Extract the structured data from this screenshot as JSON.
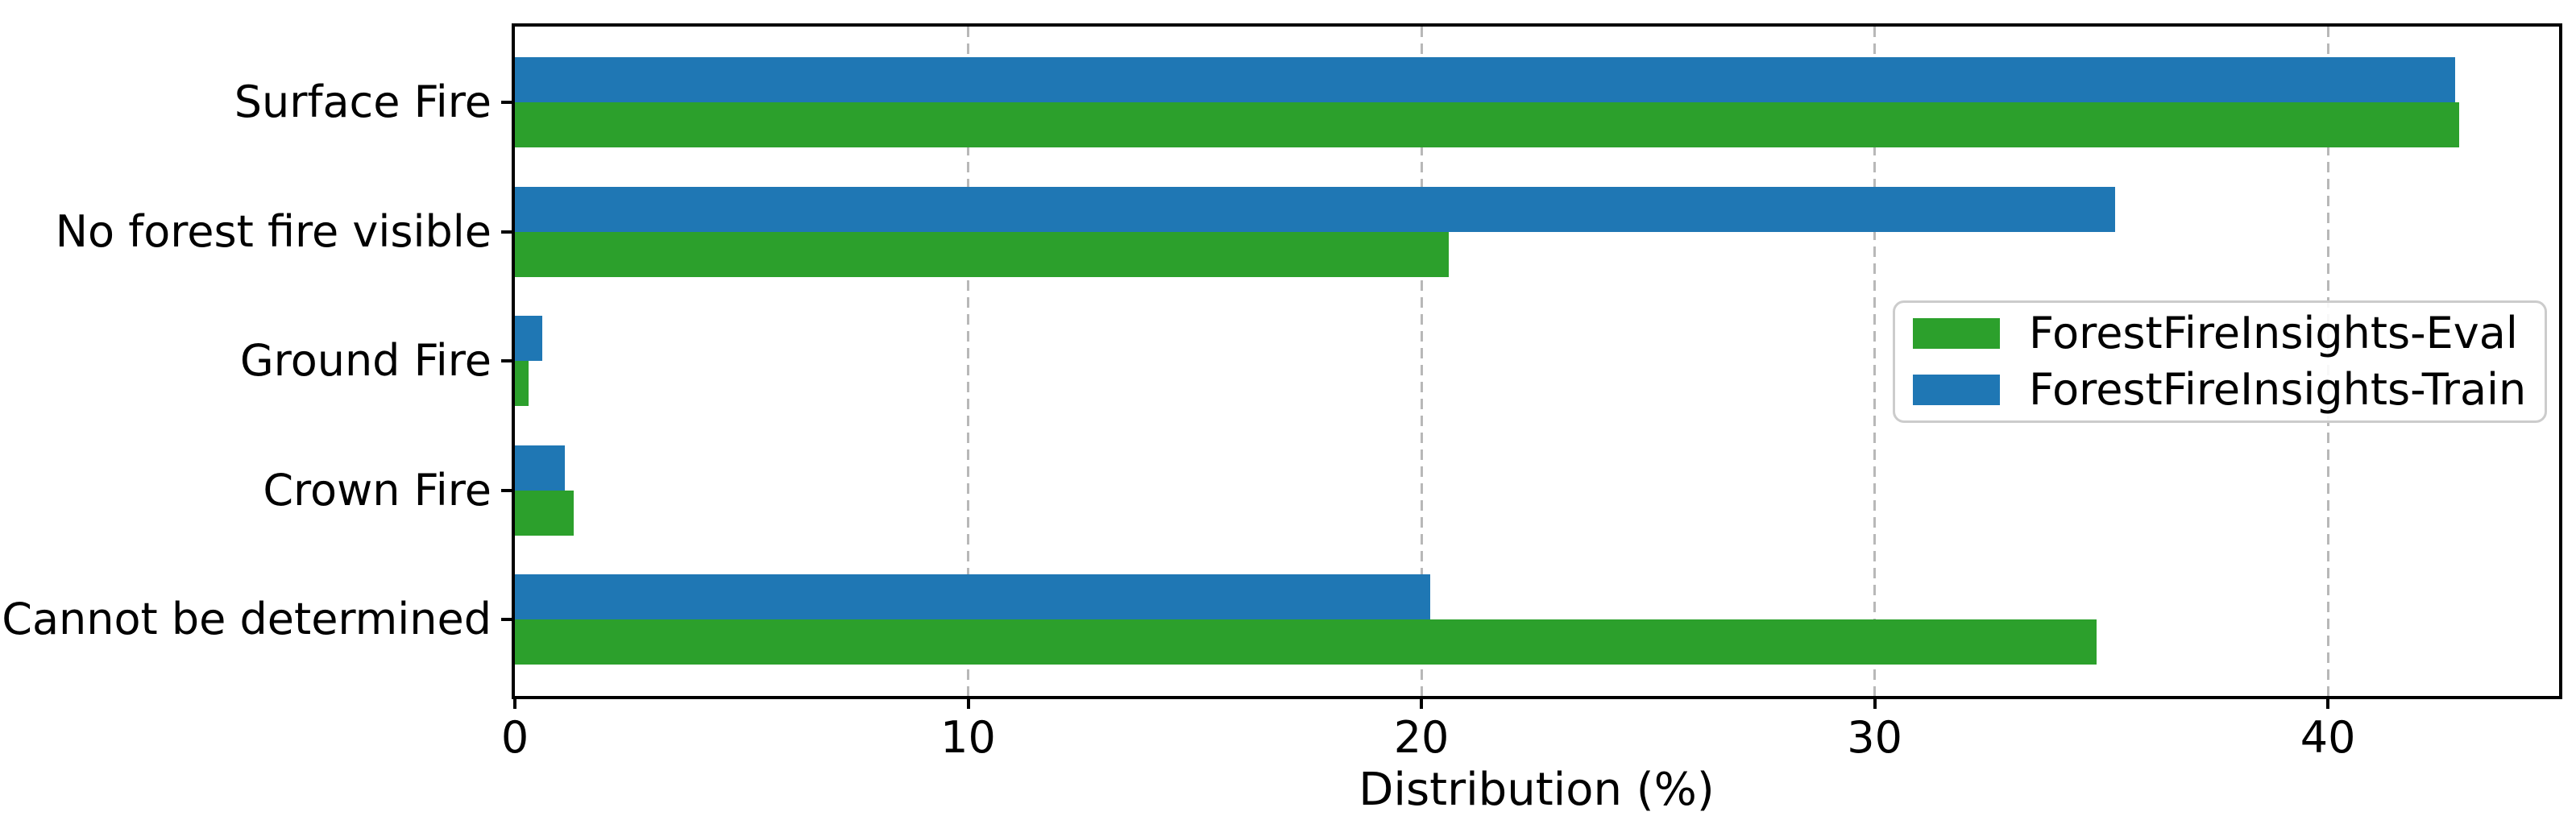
{
  "chart_data": {
    "type": "bar",
    "orientation": "horizontal",
    "title": "",
    "xlabel": "Distribution (%)",
    "ylabel": "",
    "categories": [
      "Surface Fire",
      "No forest fire visible",
      "Ground Fire",
      "Crown Fire",
      "Cannot be determined"
    ],
    "series": [
      {
        "name": "ForestFireInsights-Eval",
        "color": "#2ca02c",
        "values": [
          42.9,
          20.6,
          0.3,
          1.3,
          34.9
        ]
      },
      {
        "name": "ForestFireInsights-Train",
        "color": "#1f77b4",
        "values": [
          42.8,
          35.3,
          0.6,
          1.1,
          20.2
        ]
      }
    ],
    "bar_order_top_to_bottom_per_group": [
      "ForestFireInsights-Train",
      "ForestFireInsights-Eval"
    ],
    "xticks": [
      0,
      10,
      20,
      30,
      40
    ],
    "xlim": [
      0,
      45.1
    ],
    "grid": {
      "axis": "x",
      "style": "dashed",
      "color": "#b8b8b8"
    },
    "legend": {
      "position": "center-right",
      "entries": [
        "ForestFireInsights-Eval",
        "ForestFireInsights-Train"
      ]
    },
    "colors": {
      "eval_green": "#2ca02c",
      "train_blue": "#1f77b4",
      "spine": "#000000",
      "gridline": "#b8b8b8"
    }
  }
}
